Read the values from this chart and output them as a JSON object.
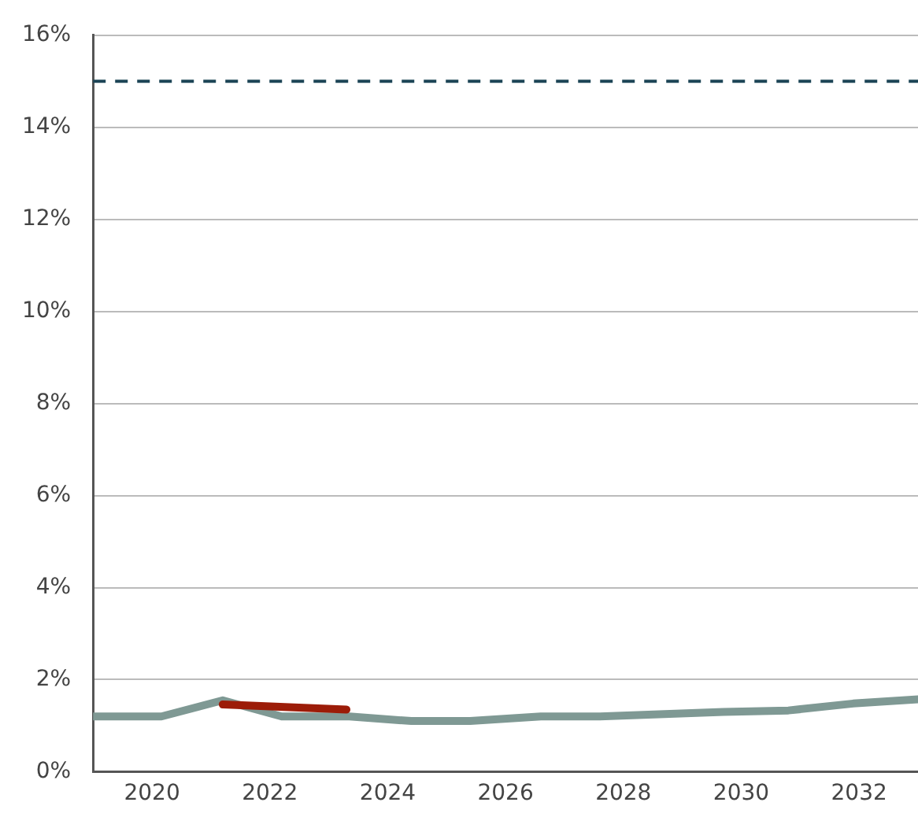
{
  "chart_data": {
    "type": "line",
    "xlim": [
      2019,
      2033
    ],
    "xticks": [
      2020,
      2022,
      2024,
      2026,
      2028,
      2030,
      2032
    ],
    "ylim": [
      0,
      16
    ],
    "yticks": [
      {
        "value": 0,
        "label": "0%"
      },
      {
        "value": 2,
        "label": "2%"
      },
      {
        "value": 4,
        "label": "4%"
      },
      {
        "value": 6,
        "label": "6%"
      },
      {
        "value": 8,
        "label": "8%"
      },
      {
        "value": 10,
        "label": "10%"
      },
      {
        "value": 12,
        "label": "12%"
      },
      {
        "value": 14,
        "label": "14%"
      },
      {
        "value": 16,
        "label": "16%"
      }
    ],
    "grid": "y",
    "legend": false,
    "marker": "none",
    "line_style": "solid",
    "series": [
      {
        "color": "#9c1c08",
        "x": [
          2021.2,
          2023.3
        ],
        "values": [
          1.46,
          1.35
        ]
      },
      {
        "color": "#7f9994",
        "x": [
          2019,
          2020.16,
          2021.2,
          2022.2,
          2023.35,
          2024.4,
          2025.4,
          2026.6,
          2027.6,
          2029.7,
          2030.8,
          2031.9,
          2033
        ],
        "values": [
          1.2,
          1.2,
          1.55,
          1.2,
          1.2,
          1.1,
          1.1,
          1.2,
          1.2,
          1.3,
          1.33,
          1.48,
          1.57
        ]
      }
    ],
    "ref_lines": [
      {
        "axis": "y",
        "value": 15,
        "color": "#1d4556",
        "line_style": "dashed"
      }
    ]
  }
}
